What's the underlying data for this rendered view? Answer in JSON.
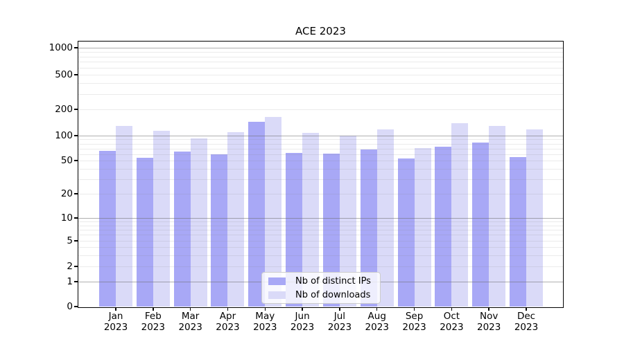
{
  "title": "ACE 2023",
  "chart_data": {
    "type": "bar",
    "title": "ACE 2023",
    "year": "2023",
    "months": [
      "Jan",
      "Feb",
      "Mar",
      "Apr",
      "May",
      "Jun",
      "Jul",
      "Aug",
      "Sep",
      "Oct",
      "Nov",
      "Dec"
    ],
    "categories": [
      "Jan 2023",
      "Feb 2023",
      "Mar 2023",
      "Apr 2023",
      "May 2023",
      "Jun 2023",
      "Jul 2023",
      "Aug 2023",
      "Sep 2023",
      "Oct 2023",
      "Nov 2023",
      "Dec 2023"
    ],
    "series": [
      {
        "name": "Nb of distinct IPs",
        "color": "#a8a8f6",
        "values": [
          65,
          54,
          64,
          60,
          144,
          62,
          61,
          68,
          53,
          74,
          82,
          55
        ]
      },
      {
        "name": "Nb of downloads",
        "color": "#dadaf8",
        "values": [
          128,
          113,
          92,
          110,
          165,
          108,
          100,
          117,
          71,
          138,
          128,
          117
        ]
      }
    ],
    "xlabel": "",
    "ylabel": "",
    "yscale": "symlog",
    "yticks": [
      1000,
      500,
      200,
      100,
      50,
      20,
      10,
      5,
      2,
      1,
      0
    ],
    "ylim": [
      0,
      1200
    ],
    "grid": true,
    "legend_position": "lower center",
    "colors": {
      "bar_dark": "#a8a8f6",
      "bar_light": "#dadaf8",
      "major_grid": "#b0b0b0",
      "minor_grid": "#e7e7e7",
      "spine": "#000000",
      "legend_border": "#cccccc"
    }
  }
}
